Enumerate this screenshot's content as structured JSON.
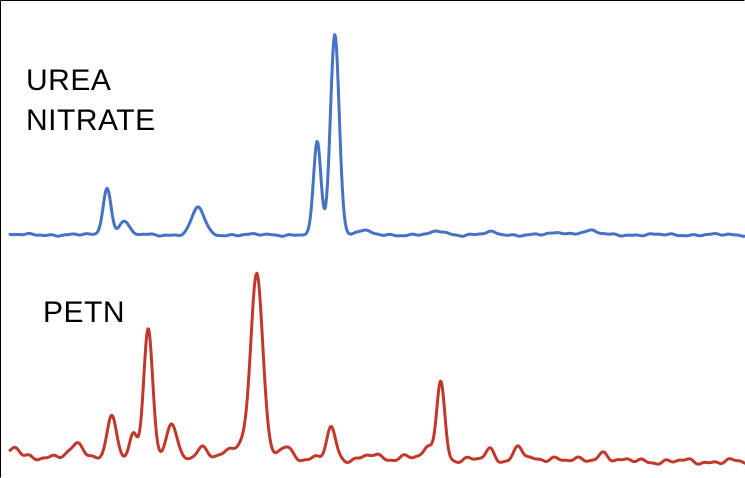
{
  "chart_data": {
    "type": "line",
    "title": "",
    "xlabel": "",
    "ylabel": "",
    "xlim": [
      0,
      100
    ],
    "ylim": [
      0,
      100
    ],
    "grid": false,
    "legend": "none",
    "series": [
      {
        "name": "UREA\nNITRATE",
        "color": "#4472C4",
        "baseline": 49.6,
        "peaks": [
          [
            13.2,
            10.2,
            0.55
          ],
          [
            15.5,
            3.1,
            0.65
          ],
          [
            25.6,
            6.0,
            0.85
          ],
          [
            41.8,
            20.5,
            0.5
          ],
          [
            44.2,
            44.0,
            0.6
          ],
          [
            48.0,
            1.0,
            0.8
          ],
          [
            58.5,
            0.8,
            0.9
          ],
          [
            65.5,
            0.5,
            0.9
          ],
          [
            75.0,
            0.5,
            1.0
          ],
          [
            78.7,
            0.9,
            1.1
          ]
        ]
      },
      {
        "name": "PETN",
        "color": "#C0392B",
        "baseline": 1.0,
        "peaks": [
          [
            0.6,
            1.8,
            0.6
          ],
          [
            9.3,
            3.0,
            0.8
          ],
          [
            13.8,
            9.0,
            0.6
          ],
          [
            16.8,
            5.5,
            0.5
          ],
          [
            18.8,
            29.0,
            0.6
          ],
          [
            22.0,
            7.5,
            0.65
          ],
          [
            26.0,
            2.5,
            0.7
          ],
          [
            31.8,
            3.5,
            1.6
          ],
          [
            33.6,
            39.0,
            0.8
          ],
          [
            37.5,
            2.8,
            0.8
          ],
          [
            43.7,
            6.8,
            0.6
          ],
          [
            49.0,
            0.8,
            0.9
          ],
          [
            54.0,
            1.0,
            0.9
          ],
          [
            57.0,
            2.3,
            0.7
          ],
          [
            58.6,
            17.0,
            0.55
          ],
          [
            65.3,
            2.3,
            0.6
          ],
          [
            69.2,
            3.0,
            0.6
          ],
          [
            74.0,
            0.7,
            1.0
          ],
          [
            80.8,
            2.0,
            0.7
          ]
        ]
      }
    ]
  }
}
